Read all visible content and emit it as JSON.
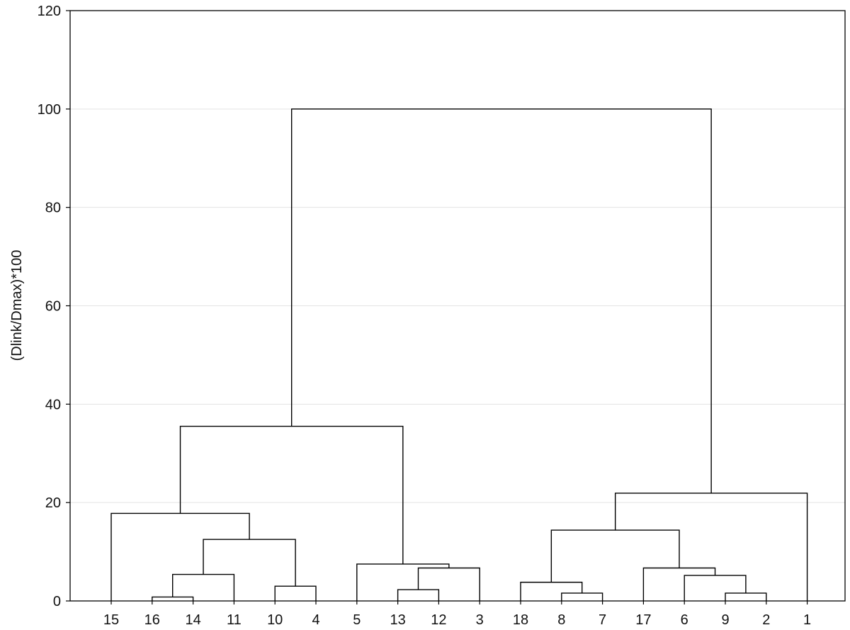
{
  "chart_data": {
    "type": "dendrogram",
    "title": "",
    "xlabel": "",
    "ylabel": "(Dlink/Dmax)*100",
    "ylim": [
      0,
      120
    ],
    "yticks": [
      0,
      20,
      40,
      60,
      80,
      100,
      120
    ],
    "grid": true,
    "leaf_order": [
      "15",
      "16",
      "14",
      "11",
      "10",
      "4",
      "5",
      "13",
      "12",
      "3",
      "18",
      "8",
      "7",
      "17",
      "6",
      "9",
      "2",
      "1"
    ],
    "merges": [
      {
        "a": "16",
        "b": "14",
        "height": 0.8
      },
      {
        "a": "9",
        "b": "2",
        "height": 1.6
      },
      {
        "a": "8",
        "b": "7",
        "height": 1.6
      },
      {
        "a": "13",
        "b": "12",
        "height": 2.3
      },
      {
        "a": "10",
        "b": "4",
        "height": 3.0
      },
      {
        "a": "18",
        "b": "8-7",
        "height": 3.8
      },
      {
        "a": "6",
        "b": "9-2",
        "height": 5.2
      },
      {
        "a": "16-14",
        "b": "11",
        "height": 5.4
      },
      {
        "a": "13-12",
        "b": "3",
        "height": 6.7
      },
      {
        "a": "17",
        "b": "6-9-2",
        "height": 6.7
      },
      {
        "a": "5",
        "b": "13-12-3",
        "height": 7.5
      },
      {
        "a": "16-14-11",
        "b": "10-4",
        "height": 12.5
      },
      {
        "a": "18-8-7",
        "b": "17-6-9-2",
        "height": 14.4
      },
      {
        "a": "15",
        "b": "16-14-11-10-4",
        "height": 17.8
      },
      {
        "a": "18-8-7-17-6-9-2",
        "b": "1",
        "height": 21.9
      },
      {
        "a": "15-16-14-11-10-4",
        "b": "5-13-12-3",
        "height": 35.5
      },
      {
        "a": "15-16-14-11-10-4-5-13-12-3",
        "b": "18-8-7-17-6-9-2-1",
        "height": 100.0
      }
    ]
  }
}
